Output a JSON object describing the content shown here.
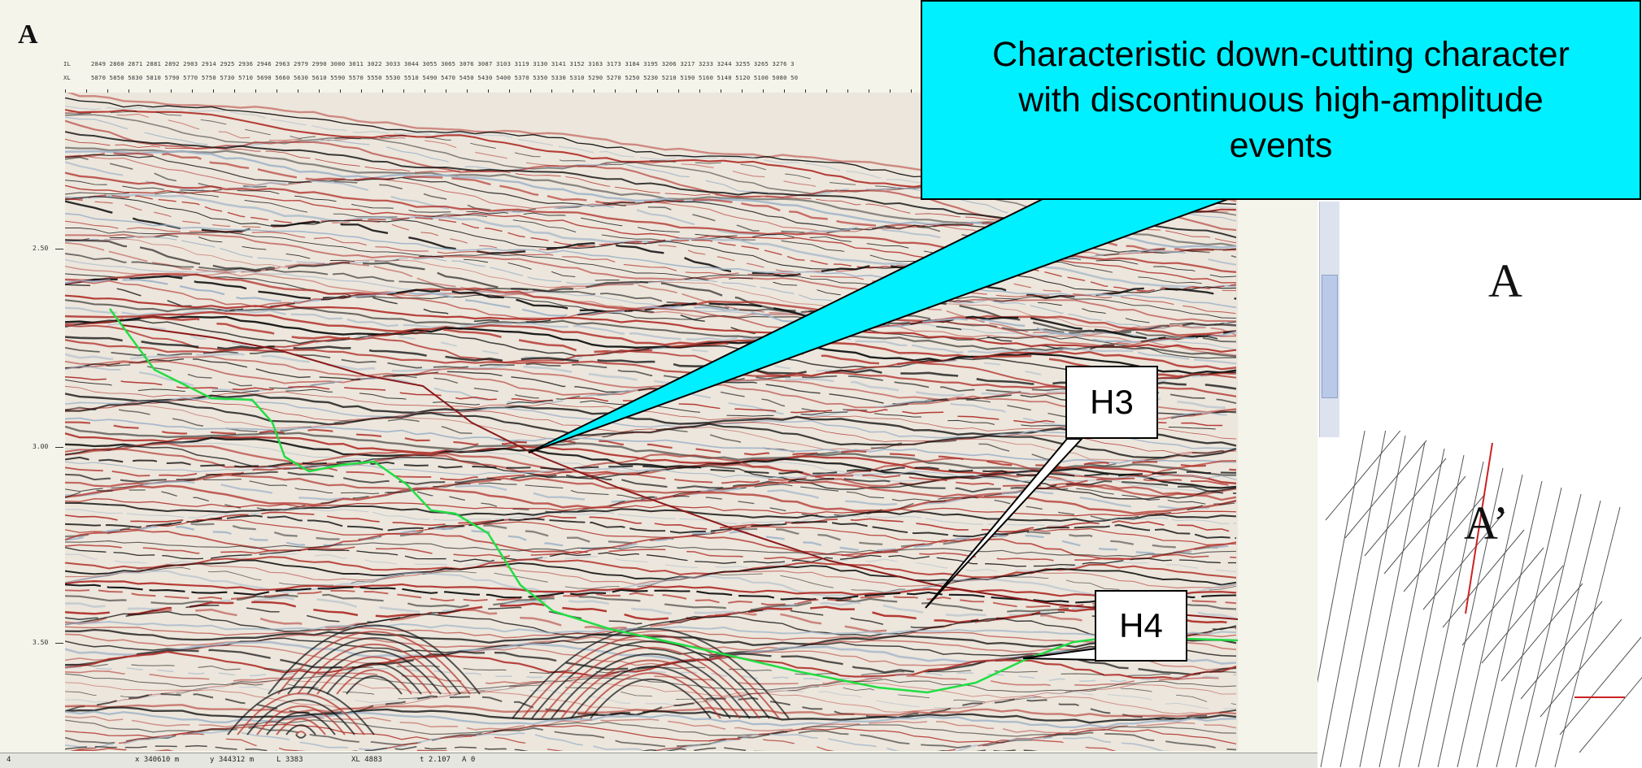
{
  "figure": {
    "section_label": "A",
    "map_label_a": "A",
    "map_label_a_prime": "A’"
  },
  "header": {
    "inline_label": "IL",
    "crossline_label": "XL",
    "inline_values": "2849 2860 2871 2881 2892 2903 2914 2925 2936 2946   2963   2979 2990 3000 3011 3022 3033 3044 3055 3065 3076 3087   3103   3119 3130 3141 3152 3163 3173 3184 3195 3206 3217   3233 3244 3255 3265 3276 3",
    "crossline_values": "5870 5850 5830 5810 5790 5770 5750 5730 5710 5690   5660   5630 5610 5590 5570 5550 5530 5510 5490 5470 5450 5430   5400   5370 5350 5330 5310 5290 5270 5250 5230 5210 5190   5160 5140 5120 5100 5080 50"
  },
  "time_axis": {
    "ticks": [
      "2.50",
      "3.00",
      "3.50"
    ]
  },
  "statusbar": {
    "item_0": "4",
    "x_coord": "x 340610 m",
    "y_coord": "y 344312 m",
    "inline": "L 3383",
    "crossline": "XL 4883",
    "time": "t 2.107",
    "amplitude": "A 0"
  },
  "callout": {
    "text": "Characteristic down-cutting character\nwith discontinuous high-amplitude\nevents"
  },
  "horizons": {
    "h3_label": "H3",
    "h4_label": "H4",
    "h3_color": "#8b1a1a",
    "h4_color": "#22dd44"
  },
  "colors": {
    "callout_fill": "#00f0ff",
    "seismic_red": "#b0302a",
    "seismic_black": "#111111",
    "seismic_blue": "#9fb3c8",
    "basemap_line": "#c22",
    "scroll_thumb": "#b9c9e8"
  }
}
